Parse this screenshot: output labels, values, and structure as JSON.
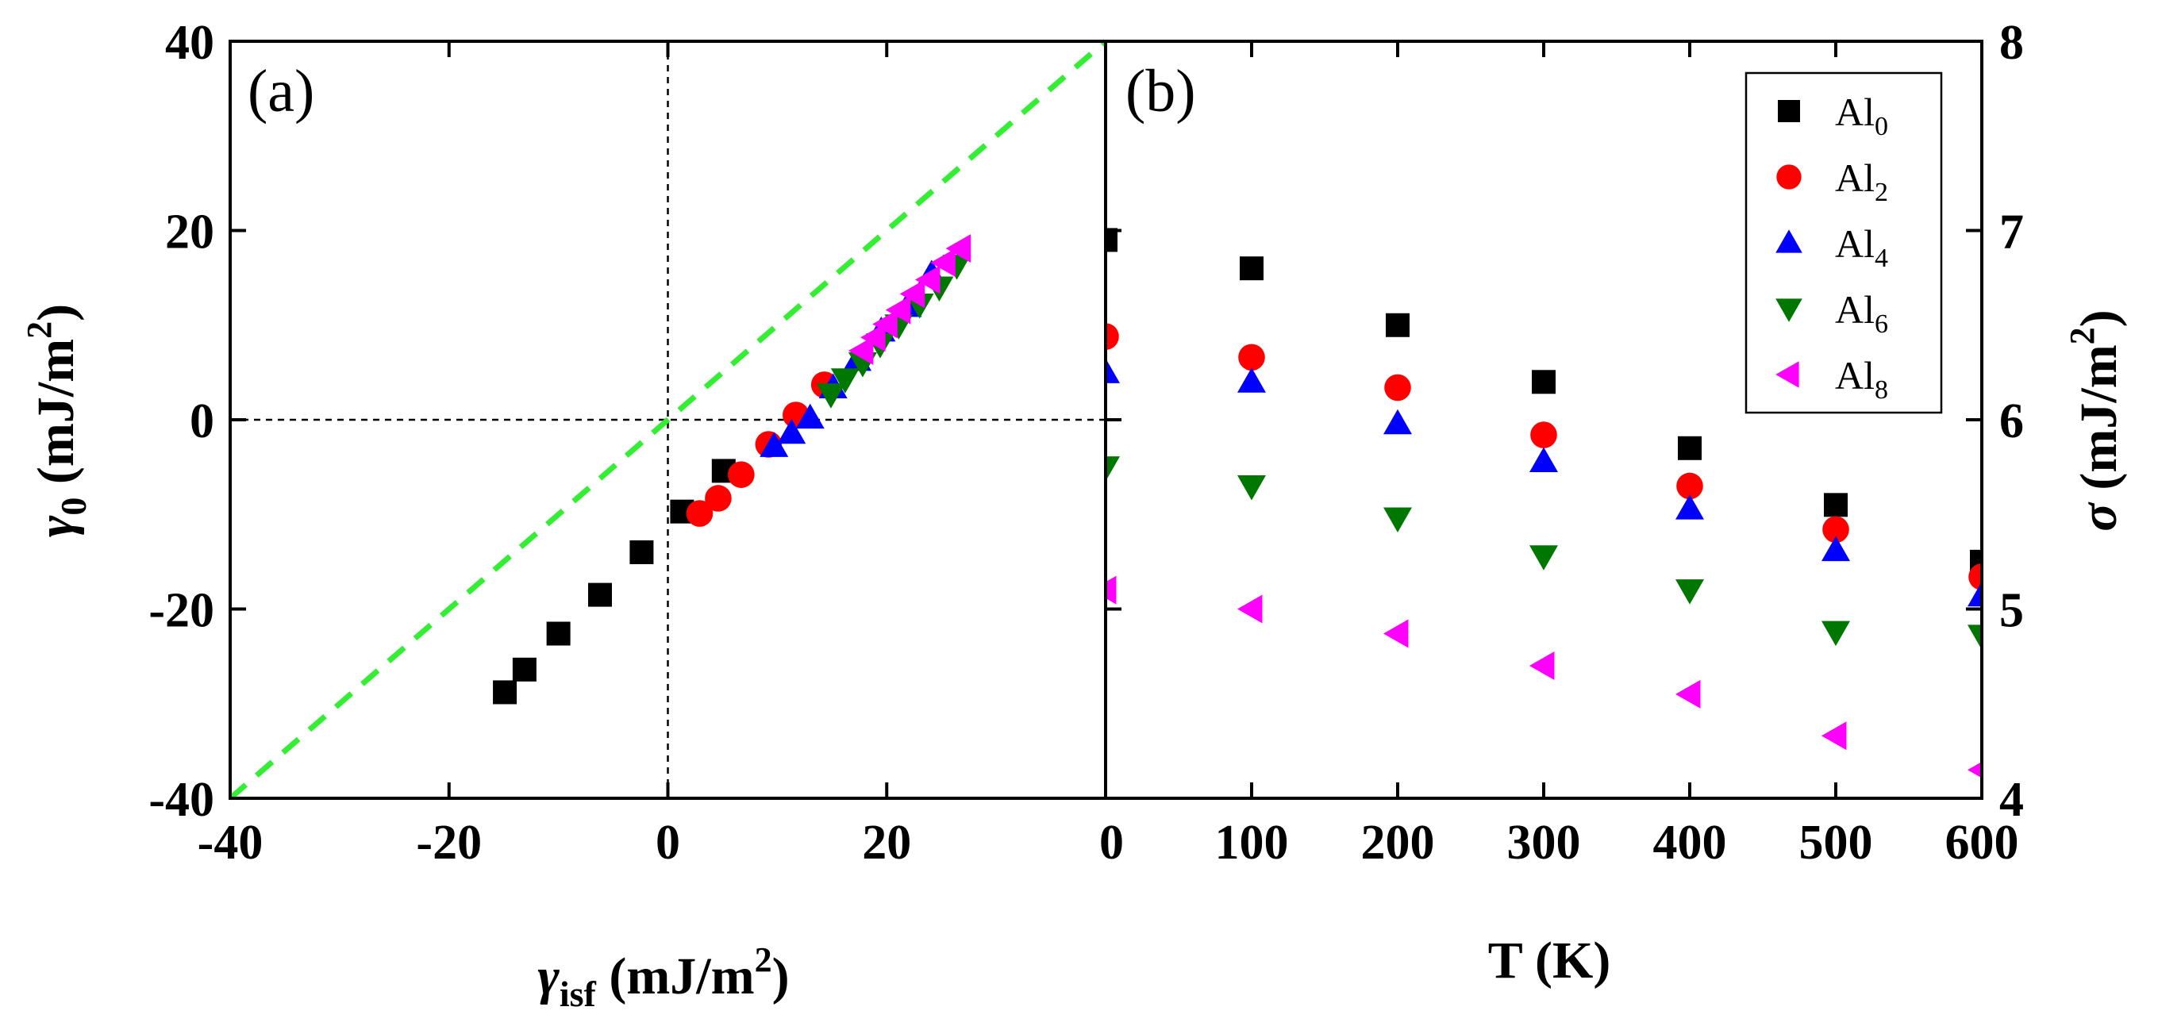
{
  "chart_data": [
    {
      "type": "scatter",
      "panel_label": "(a)",
      "xlabel": {
        "symbol": "γ",
        "sub": "isf",
        "unit": "(mJ/m",
        "sup": "2",
        "close": ")"
      },
      "ylabel": {
        "symbol": "γ",
        "sub": "0",
        "unit": "(mJ/m",
        "sup": "2",
        "close": ")"
      },
      "xlim": [
        -40,
        40
      ],
      "ylim": [
        -40,
        40
      ],
      "xticks": [
        -40,
        -20,
        0,
        20
      ],
      "yticks": [
        -40,
        -20,
        0,
        20,
        40
      ],
      "xtick_labels": [
        "-40",
        "-20",
        "0",
        "20"
      ],
      "ytick_labels": [
        "-40",
        "-20",
        "0",
        "20",
        "40"
      ],
      "reference_lines": [
        {
          "name": "y=x",
          "style": "dashed",
          "color": "#33ee33",
          "x": [
            -40,
            40
          ],
          "y": [
            -40,
            40
          ]
        },
        {
          "name": "x=0",
          "style": "dotted",
          "color": "#000000"
        },
        {
          "name": "y=0",
          "style": "dotted",
          "color": "#000000"
        }
      ],
      "series": [
        {
          "name": "Al0",
          "marker": "square",
          "color": "#000000",
          "x": [
            -14.9,
            -13.1,
            -10.0,
            -6.2,
            -2.4,
            1.3,
            5.1
          ],
          "y": [
            -28.8,
            -26.4,
            -22.6,
            -18.5,
            -14.0,
            -9.7,
            -5.4
          ]
        },
        {
          "name": "Al2",
          "marker": "circle",
          "color": "#ff0000",
          "x": [
            2.9,
            4.6,
            6.7,
            9.2,
            11.7,
            14.3
          ],
          "y": [
            -9.9,
            -8.3,
            -5.8,
            -2.6,
            0.5,
            3.7
          ]
        },
        {
          "name": "Al4",
          "marker": "triangle-up",
          "color": "#0000ff",
          "x": [
            9.7,
            11.3,
            13.0,
            15.1,
            17.3,
            19.5,
            21.9,
            24.1
          ],
          "y": [
            -2.8,
            -1.4,
            0.2,
            3.4,
            6.3,
            9.4,
            12.0,
            15.4
          ]
        },
        {
          "name": "Al6",
          "marker": "triangle-down",
          "color": "#007700",
          "x": [
            14.9,
            16.2,
            17.8,
            19.4,
            21.1,
            23.0,
            24.8,
            26.4
          ],
          "y": [
            2.7,
            4.3,
            6.0,
            8.0,
            10.0,
            12.2,
            14.0,
            16.3
          ]
        },
        {
          "name": "Al8",
          "marker": "triangle-left",
          "color": "#ff00ff",
          "x": [
            17.8,
            18.9,
            20.0,
            21.2,
            22.5,
            23.9,
            25.3,
            26.7
          ],
          "y": [
            7.3,
            8.7,
            10.1,
            11.6,
            13.3,
            14.8,
            16.6,
            18.1
          ]
        }
      ]
    },
    {
      "type": "scatter",
      "panel_label": "(b)",
      "xlabel": {
        "text": "T (K)"
      },
      "ylabel": {
        "symbol": "σ",
        "unit": "(mJ/m",
        "sup": "2",
        "close": ")"
      },
      "xlim": [
        0,
        600
      ],
      "ylim": [
        4,
        8
      ],
      "xticks": [
        0,
        100,
        200,
        300,
        400,
        500,
        600
      ],
      "yticks": [
        4,
        5,
        6,
        7,
        8
      ],
      "xtick_labels": [
        "0",
        "100",
        "200",
        "300",
        "400",
        "500",
        "600"
      ],
      "ytick_labels": [
        "4",
        "5",
        "6",
        "7",
        "8"
      ],
      "legend_position": "top-right",
      "series": [
        {
          "name": "Al0",
          "legend": {
            "base": "Al",
            "sub": "0"
          },
          "marker": "square",
          "color": "#000000",
          "x": [
            0,
            100,
            200,
            300,
            400,
            500,
            600
          ],
          "y": [
            6.95,
            6.8,
            6.5,
            6.2,
            5.85,
            5.55,
            5.25
          ]
        },
        {
          "name": "Al2",
          "legend": {
            "base": "Al",
            "sub": "2"
          },
          "marker": "circle",
          "color": "#ff0000",
          "x": [
            0,
            100,
            200,
            300,
            400,
            500,
            600
          ],
          "y": [
            6.44,
            6.33,
            6.17,
            5.92,
            5.65,
            5.42,
            5.17
          ]
        },
        {
          "name": "Al4",
          "legend": {
            "base": "Al",
            "sub": "4"
          },
          "marker": "triangle-up",
          "color": "#0000ff",
          "x": [
            0,
            100,
            200,
            300,
            400,
            500,
            600
          ],
          "y": [
            6.25,
            6.2,
            5.98,
            5.78,
            5.53,
            5.31,
            5.07
          ]
        },
        {
          "name": "Al6",
          "legend": {
            "base": "Al",
            "sub": "6"
          },
          "marker": "triangle-down",
          "color": "#007700",
          "x": [
            0,
            100,
            200,
            300,
            400,
            500,
            600
          ],
          "y": [
            5.75,
            5.65,
            5.48,
            5.28,
            5.1,
            4.88,
            4.86
          ]
        },
        {
          "name": "Al8",
          "legend": {
            "base": "Al",
            "sub": "8"
          },
          "marker": "triangle-left",
          "color": "#ff00ff",
          "x": [
            0,
            100,
            200,
            300,
            400,
            500,
            600
          ],
          "y": [
            5.1,
            5.0,
            4.87,
            4.7,
            4.55,
            4.33,
            4.15
          ]
        }
      ]
    }
  ]
}
